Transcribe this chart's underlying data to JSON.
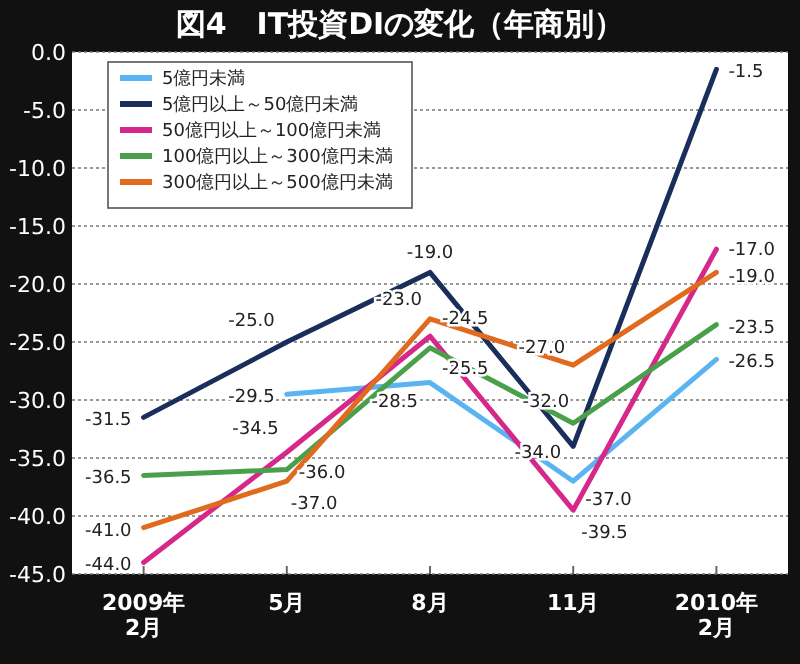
{
  "chart_data": {
    "type": "line",
    "title": "図4　IT投資DIの変化（年商別）",
    "categories": [
      "2009年\n2月",
      "5月",
      "8月",
      "11月",
      "2010年\n2月"
    ],
    "series": [
      {
        "name": "5億円未満",
        "color": "#5ab4f0",
        "values": [
          null,
          -29.5,
          -28.5,
          -37.0,
          -26.5
        ],
        "value_labels": [
          null,
          "-29.5",
          "-28.5",
          "-37.0",
          "-26.5"
        ]
      },
      {
        "name": "5億円以上～50億円未満",
        "color": "#1a2e5c",
        "values": [
          -31.5,
          -25.0,
          -19.0,
          -34.0,
          -1.5
        ],
        "value_labels": [
          "-31.5",
          "-25.0",
          "-19.0",
          "-34.0",
          "-1.5"
        ]
      },
      {
        "name": "50億円以上～100億円未満",
        "color": "#d6288a",
        "values": [
          -44.0,
          -34.5,
          -24.5,
          -39.5,
          -17.0
        ],
        "value_labels": [
          "-44.0",
          "-34.5",
          "-24.5",
          "-39.5",
          "-17.0"
        ]
      },
      {
        "name": "100億円以上～300億円未満",
        "color": "#4aa04a",
        "values": [
          -36.5,
          -36.0,
          -25.5,
          -32.0,
          -23.5
        ],
        "value_labels": [
          "-36.5",
          "-36.0",
          "-25.5",
          "-32.0",
          "-23.5"
        ]
      },
      {
        "name": "300億円以上～500億円未満",
        "color": "#e06a1e",
        "values": [
          -41.0,
          -37.0,
          -23.0,
          -27.0,
          -19.0
        ],
        "value_labels": [
          "-41.0",
          "-37.0",
          "-23.0",
          "-27.0",
          "-19.0"
        ]
      }
    ],
    "ylim": [
      -45,
      0
    ],
    "yticks": [
      {
        "value": -45,
        "label": "-45.0"
      },
      {
        "value": -40,
        "label": "-40.0"
      },
      {
        "value": -35,
        "label": "-35.0"
      },
      {
        "value": -30,
        "label": "-30.0"
      },
      {
        "value": -25,
        "label": "-25.0"
      },
      {
        "value": -20,
        "label": "-20.0"
      },
      {
        "value": -15,
        "label": "-15.0"
      },
      {
        "value": -10,
        "label": "-10.0"
      },
      {
        "value": -5,
        "label": "-5.0"
      },
      {
        "value": 0,
        "label": "0.0"
      }
    ],
    "grid": "y",
    "legend": "top left",
    "marker": "none",
    "line_style": "solid"
  }
}
